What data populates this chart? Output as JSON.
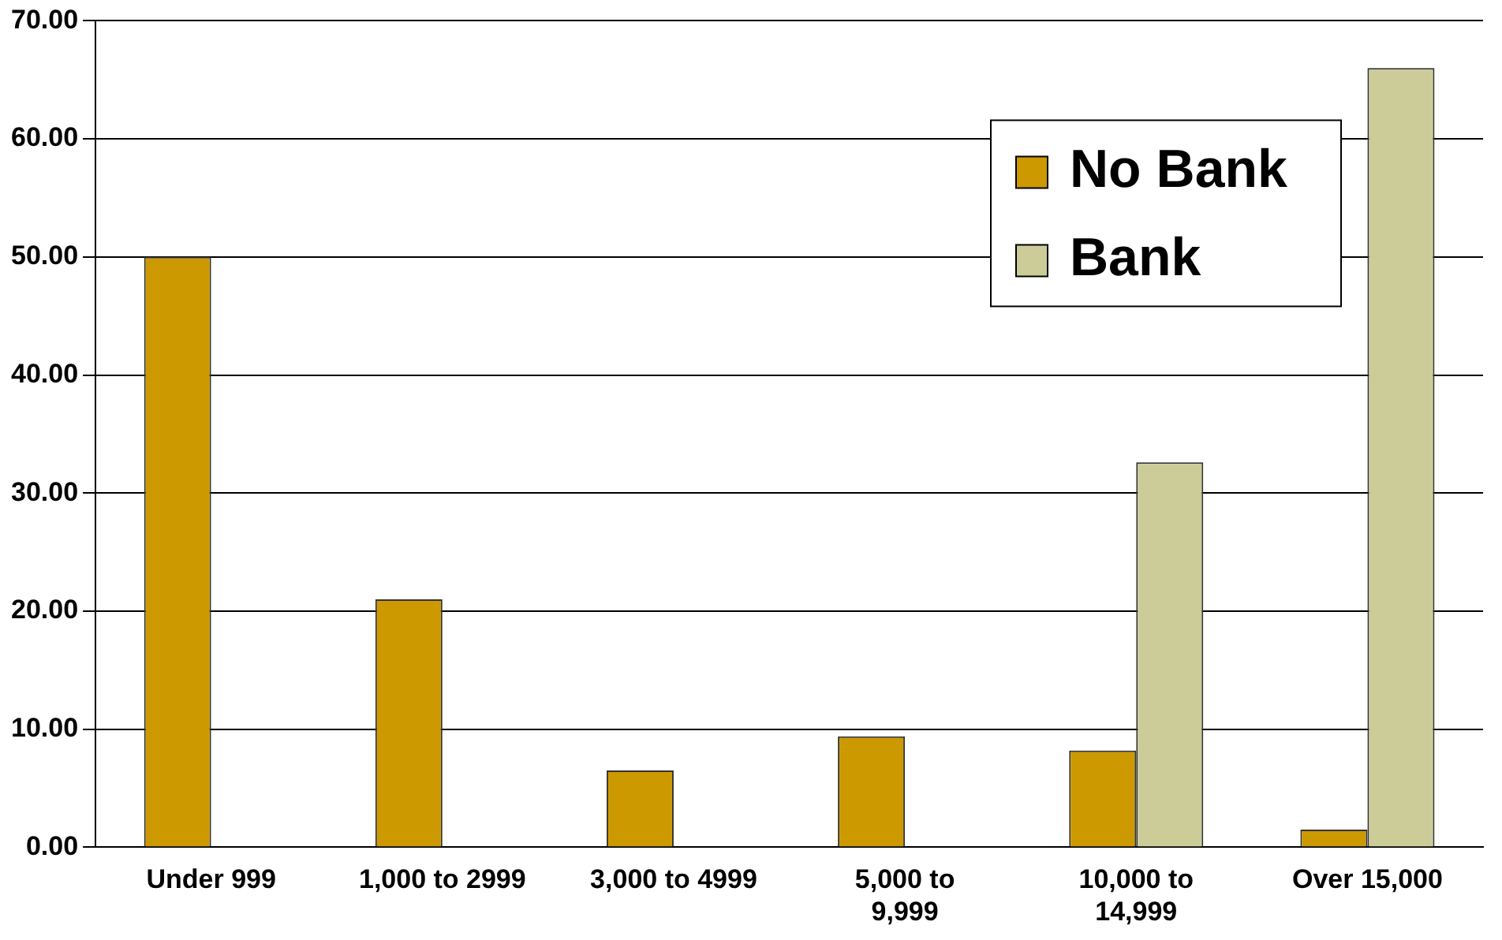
{
  "chart_data": {
    "type": "bar",
    "categories": [
      "Under 999",
      "1,000 to 2999",
      "3,000 to 4999",
      "5,000 to 9,999",
      "10,000 to 14,999",
      "Over 15,000"
    ],
    "series": [
      {
        "name": "No Bank",
        "color": "#cc9900",
        "values": [
          50,
          21,
          6.5,
          9.4,
          8.2,
          1.5
        ]
      },
      {
        "name": "Bank",
        "color": "#cccc99",
        "values": [
          0,
          0,
          0,
          0,
          32.6,
          66
        ]
      }
    ],
    "ylim": [
      0,
      70
    ],
    "yticks": [
      {
        "value": 0,
        "label": "0.00"
      },
      {
        "value": 10,
        "label": "10.00"
      },
      {
        "value": 20,
        "label": "20.00"
      },
      {
        "value": 30,
        "label": "30.00"
      },
      {
        "value": 40,
        "label": "40.00"
      },
      {
        "value": 50,
        "label": "50.00"
      },
      {
        "value": 60,
        "label": "60.00"
      },
      {
        "value": 70,
        "label": "70.00"
      }
    ],
    "grid": "y",
    "legend": "top right"
  }
}
